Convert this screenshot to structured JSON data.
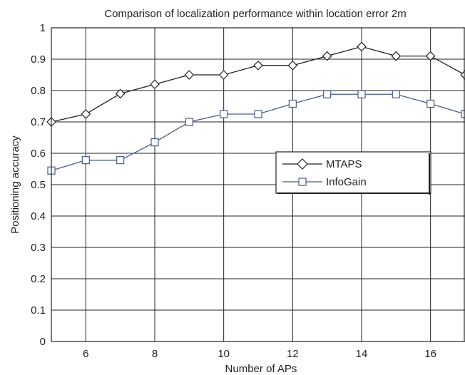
{
  "chart_data": {
    "type": "line",
    "title": "Comparison of localization performance within location error 2m",
    "xlabel": "Number of APs",
    "ylabel": "Positioning accuracy",
    "xlim": [
      5,
      17
    ],
    "ylim": [
      0,
      1
    ],
    "xticks": [
      6,
      8,
      10,
      12,
      14,
      16
    ],
    "yticks": [
      0,
      0.1,
      0.2,
      0.3,
      0.4,
      0.5,
      0.6,
      0.7,
      0.8,
      0.9,
      1
    ],
    "ytick_labels": [
      "0",
      "0.1",
      "0.2",
      "0.3",
      "0.4",
      "0.5",
      "0.6",
      "0.7",
      "0.8",
      "0.9",
      "1"
    ],
    "grid": true,
    "legend_position": "center-right",
    "x": [
      5,
      6,
      7,
      8,
      9,
      10,
      11,
      12,
      13,
      14,
      15,
      16,
      17
    ],
    "series": [
      {
        "name": "MTAPS",
        "marker": "diamond",
        "color": "#222222",
        "values": [
          0.7,
          0.725,
          0.79,
          0.82,
          0.85,
          0.85,
          0.88,
          0.88,
          0.91,
          0.94,
          0.91,
          0.91,
          0.85
        ]
      },
      {
        "name": "InfoGain",
        "marker": "square",
        "color": "#4a5a8c",
        "values": [
          0.545,
          0.578,
          0.578,
          0.635,
          0.7,
          0.725,
          0.725,
          0.758,
          0.788,
          0.788,
          0.788,
          0.758,
          0.725
        ]
      }
    ]
  }
}
